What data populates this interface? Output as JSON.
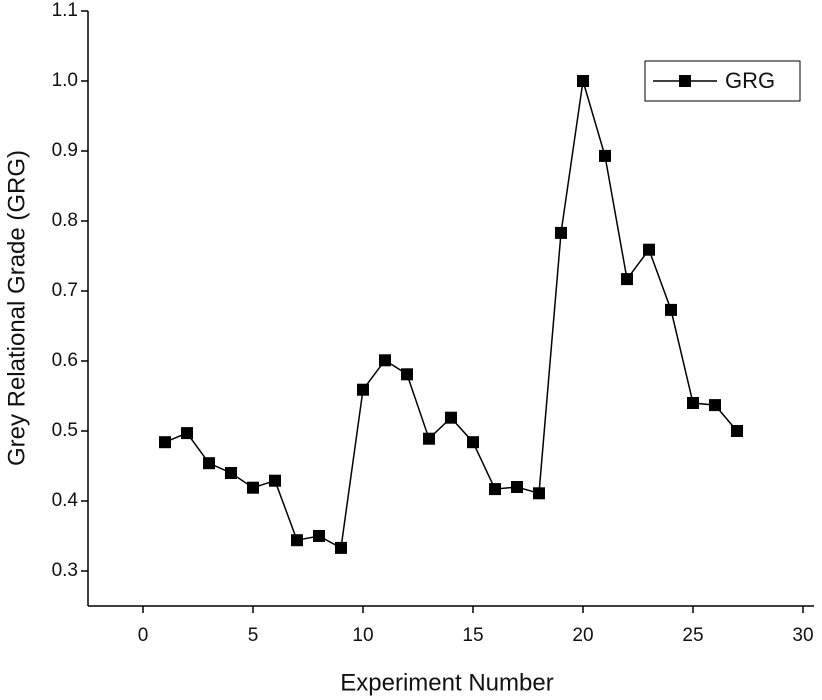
{
  "chart_data": {
    "type": "line",
    "x_label": "Experiment Number",
    "y_label": "Grey Relational Grade (GRG)",
    "x": [
      1,
      2,
      3,
      4,
      5,
      6,
      7,
      8,
      9,
      10,
      11,
      12,
      13,
      14,
      15,
      16,
      17,
      18,
      19,
      20,
      21,
      22,
      23,
      24,
      25,
      26,
      27
    ],
    "series": [
      {
        "name": "GRG",
        "color": "#000000",
        "marker": "square",
        "values": [
          0.484,
          0.497,
          0.454,
          0.44,
          0.419,
          0.429,
          0.344,
          0.35,
          0.333,
          0.559,
          0.601,
          0.581,
          0.489,
          0.519,
          0.484,
          0.417,
          0.42,
          0.411,
          0.783,
          1.0,
          0.893,
          0.717,
          0.759,
          0.673,
          0.54,
          0.537,
          0.5
        ]
      }
    ],
    "xlim": [
      -2.5,
      30.5
    ],
    "xticks": [
      0,
      5,
      10,
      15,
      20,
      25,
      30
    ],
    "ylim": [
      0.25,
      1.1
    ],
    "yticks": [
      0.3,
      0.4,
      0.5,
      0.6,
      0.7,
      0.8,
      0.9,
      {
        "value": 1.0,
        "label": "1.0"
      },
      1.1
    ],
    "legend": "upper right",
    "grid": false
  }
}
